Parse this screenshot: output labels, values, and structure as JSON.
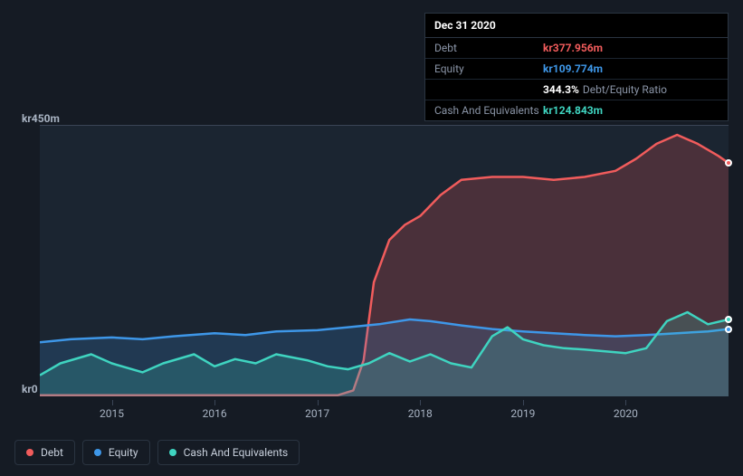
{
  "tooltip": {
    "date": "Dec 31 2020",
    "rows": [
      {
        "label": "Debt",
        "value": "kr377.956m",
        "color": "#f15c5c"
      },
      {
        "label": "Equity",
        "value": "kr109.774m",
        "color": "#3e97e8"
      },
      {
        "label": "",
        "value": "344.3%",
        "subtext": "Debt/Equity Ratio",
        "color": "#ffffff"
      },
      {
        "label": "Cash And Equivalents",
        "value": "kr124.843m",
        "color": "#3fd4c0"
      }
    ]
  },
  "chart": {
    "type": "area",
    "background_color": "#1b2531",
    "page_background": "#151b24",
    "border_color": "#3a4556",
    "ylim": [
      0,
      450
    ],
    "ylabels": [
      {
        "text": "kr450m",
        "y": 450
      },
      {
        "text": "kr0",
        "y": 0
      }
    ],
    "xlim": [
      2014.3,
      2021.0
    ],
    "xticks": [
      2015,
      2016,
      2017,
      2018,
      2019,
      2020
    ],
    "series": [
      {
        "name": "Debt",
        "color": "#f15c5c",
        "fill_opacity": 0.22,
        "line_width": 2.5,
        "points": [
          [
            2014.3,
            2
          ],
          [
            2014.6,
            2
          ],
          [
            2015.0,
            2
          ],
          [
            2015.5,
            2
          ],
          [
            2016.0,
            2
          ],
          [
            2016.5,
            2
          ],
          [
            2017.0,
            2
          ],
          [
            2017.2,
            2
          ],
          [
            2017.35,
            10
          ],
          [
            2017.45,
            60
          ],
          [
            2017.55,
            190
          ],
          [
            2017.7,
            260
          ],
          [
            2017.85,
            285
          ],
          [
            2018.0,
            300
          ],
          [
            2018.2,
            335
          ],
          [
            2018.4,
            360
          ],
          [
            2018.7,
            365
          ],
          [
            2019.0,
            365
          ],
          [
            2019.3,
            360
          ],
          [
            2019.6,
            365
          ],
          [
            2019.9,
            375
          ],
          [
            2020.1,
            395
          ],
          [
            2020.3,
            420
          ],
          [
            2020.5,
            435
          ],
          [
            2020.7,
            420
          ],
          [
            2020.9,
            400
          ],
          [
            2021.0,
            388
          ]
        ]
      },
      {
        "name": "Equity",
        "color": "#3e97e8",
        "fill_opacity": 0.18,
        "line_width": 2.5,
        "points": [
          [
            2014.3,
            90
          ],
          [
            2014.6,
            95
          ],
          [
            2015.0,
            98
          ],
          [
            2015.3,
            95
          ],
          [
            2015.6,
            100
          ],
          [
            2016.0,
            105
          ],
          [
            2016.3,
            102
          ],
          [
            2016.6,
            108
          ],
          [
            2017.0,
            110
          ],
          [
            2017.3,
            115
          ],
          [
            2017.6,
            120
          ],
          [
            2017.9,
            128
          ],
          [
            2018.1,
            125
          ],
          [
            2018.4,
            118
          ],
          [
            2018.7,
            112
          ],
          [
            2019.0,
            108
          ],
          [
            2019.3,
            105
          ],
          [
            2019.6,
            102
          ],
          [
            2019.9,
            100
          ],
          [
            2020.2,
            102
          ],
          [
            2020.5,
            105
          ],
          [
            2020.8,
            108
          ],
          [
            2021.0,
            112
          ]
        ]
      },
      {
        "name": "Cash And Equivalents",
        "color": "#3fd4c0",
        "fill_opacity": 0.2,
        "line_width": 2.5,
        "points": [
          [
            2014.3,
            35
          ],
          [
            2014.5,
            55
          ],
          [
            2014.8,
            70
          ],
          [
            2015.0,
            55
          ],
          [
            2015.3,
            40
          ],
          [
            2015.5,
            55
          ],
          [
            2015.8,
            70
          ],
          [
            2016.0,
            50
          ],
          [
            2016.2,
            62
          ],
          [
            2016.4,
            55
          ],
          [
            2016.6,
            70
          ],
          [
            2016.9,
            60
          ],
          [
            2017.1,
            50
          ],
          [
            2017.3,
            45
          ],
          [
            2017.5,
            55
          ],
          [
            2017.7,
            72
          ],
          [
            2017.9,
            58
          ],
          [
            2018.1,
            70
          ],
          [
            2018.3,
            55
          ],
          [
            2018.5,
            48
          ],
          [
            2018.7,
            100
          ],
          [
            2018.85,
            115
          ],
          [
            2019.0,
            95
          ],
          [
            2019.2,
            85
          ],
          [
            2019.4,
            80
          ],
          [
            2019.6,
            78
          ],
          [
            2019.8,
            75
          ],
          [
            2020.0,
            72
          ],
          [
            2020.2,
            80
          ],
          [
            2020.4,
            125
          ],
          [
            2020.6,
            140
          ],
          [
            2020.8,
            120
          ],
          [
            2021.0,
            128
          ]
        ]
      }
    ],
    "markers_x": 2021.0
  },
  "legend": {
    "items": [
      {
        "label": "Debt",
        "color": "#f15c5c"
      },
      {
        "label": "Equity",
        "color": "#3e97e8"
      },
      {
        "label": "Cash And Equivalents",
        "color": "#3fd4c0"
      }
    ]
  }
}
